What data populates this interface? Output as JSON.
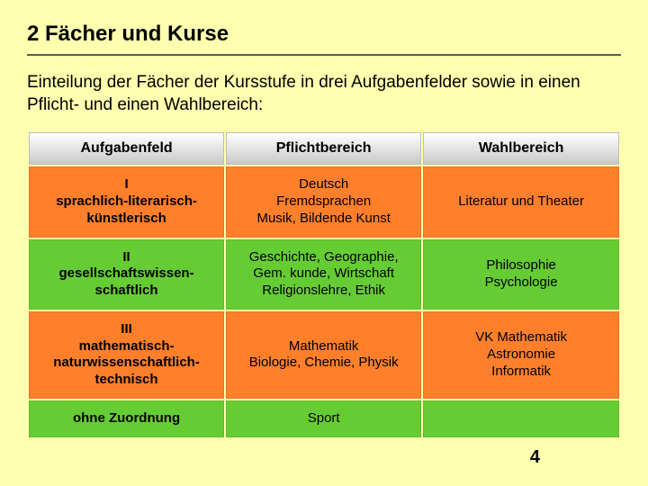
{
  "title": "2 Fächer und Kurse",
  "intro": "Einteilung der Fächer der Kursstufe in drei Aufgabenfelder sowie in einen Pflicht- und einen Wahlbereich:",
  "slide_number": "4",
  "table": {
    "columns": [
      "Aufgabenfeld",
      "Pflichtbereich",
      "Wahlbereich"
    ],
    "column_widths": [
      "33.3%",
      "33.3%",
      "33.4%"
    ],
    "header_fontsize": 16,
    "cell_fontsize": 15,
    "rows": [
      {
        "cells": [
          "I\nsprachlich-literarisch-\nkünstlerisch",
          "Deutsch\nFremdsprachen\nMusik, Bildende Kunst",
          "Literatur und Theater"
        ],
        "bg_colors": [
          "#ff7f2a",
          "#ff7f2a",
          "#ff7f2a"
        ]
      },
      {
        "cells": [
          "II\ngesellschaftswissen-\nschaftlich",
          "Geschichte, Geographie,\nGem. kunde, Wirtschaft\nReligionslehre, Ethik",
          "Philosophie\nPsychologie"
        ],
        "bg_colors": [
          "#66cc33",
          "#66cc33",
          "#66cc33"
        ]
      },
      {
        "cells": [
          "III\nmathematisch-\nnaturwissenschaftlich-\ntechnisch",
          "Mathematik\nBiologie, Chemie, Physik",
          "VK Mathematik\nAstronomie\nInformatik"
        ],
        "bg_colors": [
          "#ff7f2a",
          "#ff7f2a",
          "#ff7f2a"
        ]
      },
      {
        "cells": [
          "ohne Zuordnung",
          "Sport",
          ""
        ],
        "bg_colors": [
          "#66cc33",
          "#66cc33",
          "#66cc33"
        ]
      }
    ]
  },
  "colors": {
    "background": "#ffffb0",
    "rule": "#5a5a5a",
    "header_grad_top": "#ffffff",
    "header_grad_mid": "#e4e4e4",
    "header_grad_bot": "#c9c9c9",
    "orange": "#ff7f2a",
    "green": "#66cc33"
  }
}
